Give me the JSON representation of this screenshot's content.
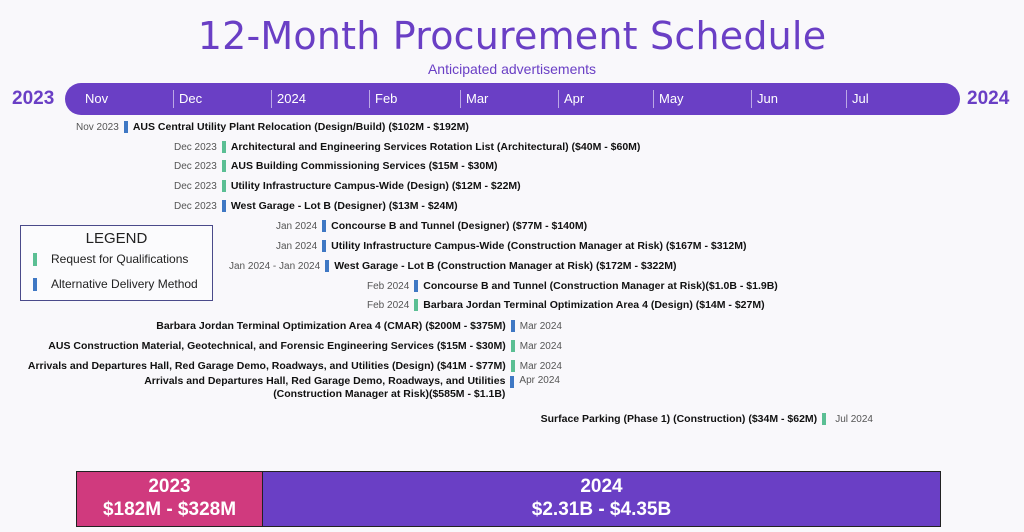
{
  "header": {
    "title": "12-Month Procurement Schedule",
    "subtitle": "Anticipated advertisements",
    "year_start": "2023",
    "year_end": "2024"
  },
  "timeline": {
    "bar_color": "#6a3fc5",
    "months": [
      "Nov",
      "Dec",
      "2024",
      "Feb",
      "Mar",
      "Apr",
      "May",
      "Jun",
      "Jul"
    ]
  },
  "legend": {
    "title": "LEGEND",
    "items": [
      {
        "label": "Request for Qualifications",
        "color": "#5bbf94"
      },
      {
        "label": "Alternative Delivery Method",
        "color": "#3f78c4"
      }
    ]
  },
  "items": [
    {
      "date": "Nov 2023",
      "type": "alt",
      "label": "AUS Central Utility Plant Relocation (Design/Build) ($102M - $192M)"
    },
    {
      "date": "Dec 2023",
      "type": "rfq",
      "label": "Architectural and Engineering Services Rotation List (Architectural) ($40M - $60M)"
    },
    {
      "date": "Dec 2023",
      "type": "rfq",
      "label": "AUS Building Commissioning Services ($15M - $30M)"
    },
    {
      "date": "Dec 2023",
      "type": "rfq",
      "label": "Utility Infrastructure Campus-Wide (Design) ($12M - $22M)"
    },
    {
      "date": "Dec 2023",
      "type": "alt",
      "label": "West Garage - Lot B (Designer) ($13M - $24M)"
    },
    {
      "date": "Jan 2024",
      "type": "alt",
      "label": "Concourse B and Tunnel (Designer) ($77M - $140M)"
    },
    {
      "date": "Jan 2024",
      "type": "alt",
      "label": "Utility Infrastructure Campus-Wide (Construction Manager at Risk) ($167M - $312M)"
    },
    {
      "date": "Jan 2024 - Jan 2024",
      "type": "alt",
      "label": "West Garage - Lot B (Construction Manager at Risk) ($172M  - $322M)"
    },
    {
      "date": "Feb 2024",
      "type": "alt",
      "label": "Concourse B and Tunnel (Construction Manager at Risk)($1.0B - $1.9B)"
    },
    {
      "date": "Feb 2024",
      "type": "rfq",
      "label": "Barbara Jordan Terminal Optimization Area 4 (Design) ($14M - $27M)"
    },
    {
      "date": "Mar 2024",
      "type": "alt",
      "label": "Barbara Jordan Terminal Optimization Area 4 (CMAR) ($200M - $375M)"
    },
    {
      "date": "Mar 2024",
      "type": "rfq",
      "label": "AUS Construction Material, Geotechnical, and Forensic Engineering Services ($15M - $30M)"
    },
    {
      "date": "Mar 2024",
      "type": "rfq",
      "label": "Arrivals and Departures Hall, Red Garage Demo, Roadways, and Utilities (Design) ($41M - $77M)"
    },
    {
      "date": "Apr 2024",
      "type": "alt",
      "label_line1": "Arrivals and Departures Hall, Red Garage Demo, Roadways, and Utilities",
      "label_line2": "(Construction Manager at Risk)($585M - $1.1B)"
    },
    {
      "date": "Jul 2024",
      "type": "rfq",
      "label": "Surface Parking (Phase 1) (Construction) ($34M - $62M)"
    }
  ],
  "totals": [
    {
      "year": "2023",
      "range": "$182M - $328M",
      "color": "#d03a7e"
    },
    {
      "year": "2024",
      "range": "$2.31B - $4.35B",
      "color": "#6a3fc5"
    }
  ]
}
